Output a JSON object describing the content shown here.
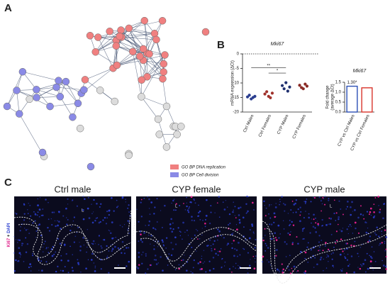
{
  "panel_labels": [
    "A",
    "B",
    "C"
  ],
  "network": {
    "legend": [
      "GO BP DNA replication",
      "GO BP Cell division"
    ]
  },
  "chart_data": [
    {
      "type": "strip",
      "title": "Mki67",
      "y_label": "mRNA expression (ΔCt)",
      "categories": [
        "Ctrl Males",
        "Ctrl Females",
        "CYP Males",
        "CYP Females"
      ],
      "colors": [
        "#2a3d8f",
        "#a0322c",
        "#1f2f6e",
        "#8a2a25"
      ],
      "values": [
        [
          -14.8,
          -14.2,
          -15.5,
          -15.0,
          -14.6
        ],
        [
          -13.8,
          -13.0,
          -14.6,
          -15.1,
          -13.5
        ],
        [
          -10.9,
          -12.0,
          -9.9,
          -12.8,
          -11.4
        ],
        [
          -10.8,
          -11.6,
          -12.0,
          -10.4,
          -11.1
        ]
      ],
      "ylim": [
        -20,
        0
      ],
      "yticks": [
        -20,
        -15,
        -10,
        -5,
        0
      ],
      "annotations": [
        {
          "text": "**",
          "from": "Ctrl Males",
          "to": "CYP Males",
          "y": -4.8
        },
        {
          "text": "*",
          "from": "Ctrl Females",
          "to": "CYP Males",
          "y": -6.6
        }
      ]
    },
    {
      "type": "bar",
      "title": "Mki67",
      "y_label": [
        "Fold change",
        "(average ΔCt)"
      ],
      "categories": [
        "CYP vs Ctrl Males",
        "CYP vs Ctrl Females"
      ],
      "colors": [
        "#2b4fb5",
        "#d9342b"
      ],
      "values": [
        1.3,
        1.22
      ],
      "value_labels": [
        "1.30*",
        null
      ],
      "ylim": [
        0,
        1.5
      ],
      "yticks": [
        {
          "value": 0,
          "label": "0.0"
        },
        {
          "value": 0.5,
          "label": "0.5"
        },
        {
          "value": 1,
          "label": "1.0"
        },
        {
          "value": 1.5,
          "label": "1.5"
        }
      ]
    }
  ],
  "micrographs": {
    "titles": [
      "Ctrl male",
      "CYP female",
      "CYP male"
    ],
    "lumen_label": "L",
    "stain": [
      "Ki67",
      "+",
      "DAPI"
    ]
  }
}
